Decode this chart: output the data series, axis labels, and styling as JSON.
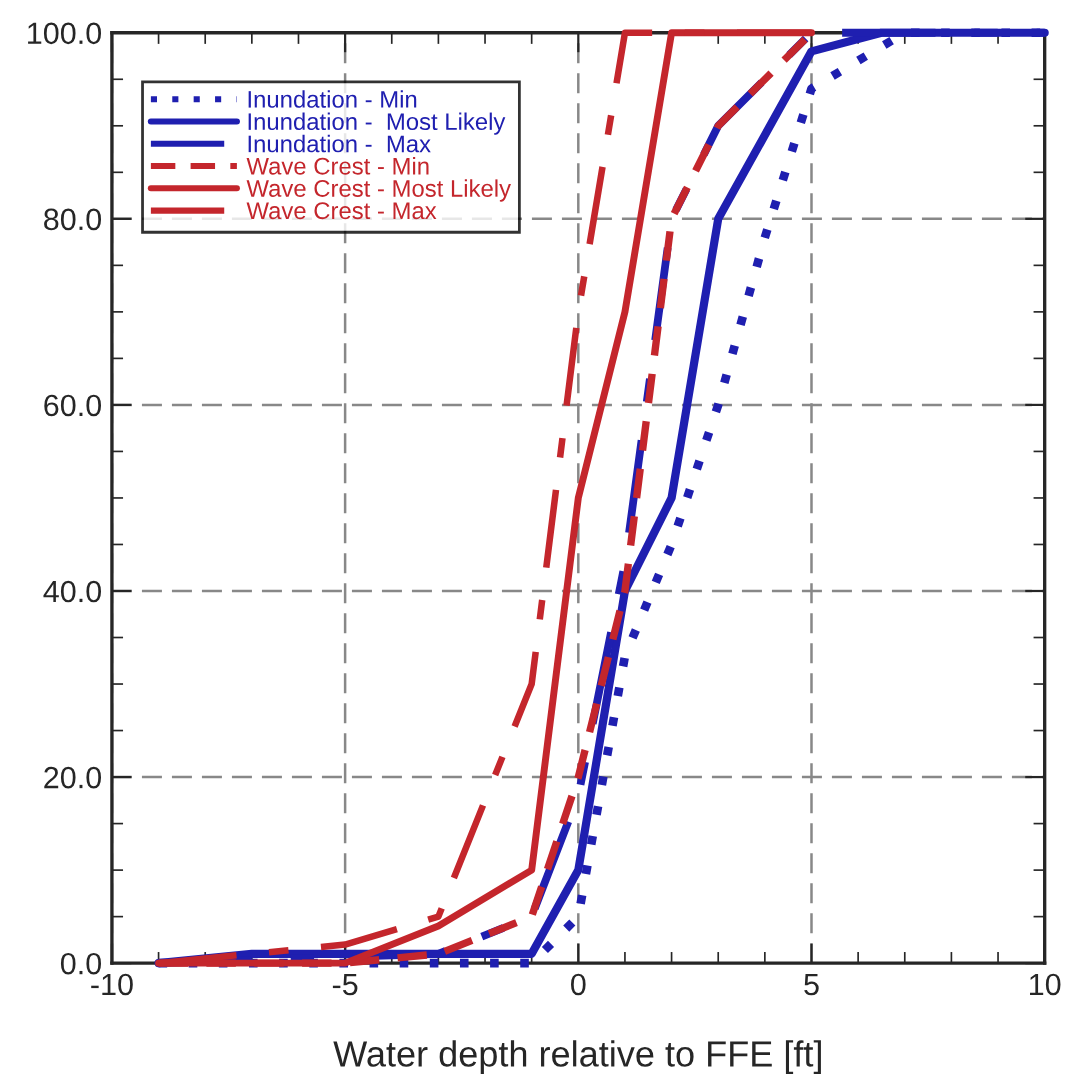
{
  "chart_data": {
    "type": "line",
    "xlabel": "Water depth relative to FFE [ft]",
    "xlim": [
      -10,
      10
    ],
    "xticks": [
      -10,
      -5,
      0,
      5,
      10
    ],
    "ylim": [
      0,
      100
    ],
    "yticks": [
      {
        "value": 0,
        "label": "0.0"
      },
      {
        "value": 20,
        "label": "20.0"
      },
      {
        "value": 40,
        "label": "40.0"
      },
      {
        "value": 60,
        "label": "60.0"
      },
      {
        "value": 80,
        "label": "80.0"
      },
      {
        "value": 100,
        "label": "100.0"
      }
    ],
    "grid": true,
    "legend": "top left",
    "marker": "none",
    "series": [
      {
        "name": "Inundation - Min",
        "color": "#1f1fb0",
        "line_style": "dotted",
        "x": [
          -9,
          -1,
          0,
          1,
          2,
          3,
          4,
          5,
          7,
          10
        ],
        "values": [
          0,
          0,
          5,
          33,
          45,
          60,
          78,
          94,
          100,
          100
        ]
      },
      {
        "name": "Inundation -  Most Likely",
        "color": "#1f1fb0",
        "line_style": "solid",
        "x": [
          -9,
          -7,
          -1,
          0,
          1,
          2,
          3,
          5,
          6.5,
          10
        ],
        "values": [
          0,
          1,
          1,
          10,
          40,
          50,
          80,
          98,
          100,
          100
        ]
      },
      {
        "name": "Inundation -  Max",
        "color": "#1f1fb0",
        "line_style": "dashdot",
        "x": [
          -9,
          -3,
          -1,
          0,
          1,
          2,
          3,
          5,
          10
        ],
        "values": [
          0,
          1,
          5,
          18,
          43,
          80,
          90,
          100,
          100
        ]
      },
      {
        "name": "Wave Crest - Min",
        "color": "#c4262c",
        "line_style": "dashed",
        "x": [
          -9,
          -5,
          -3,
          -1,
          0,
          1,
          2,
          3,
          5
        ],
        "values": [
          0,
          0,
          1,
          5,
          20,
          40,
          80,
          90,
          100
        ]
      },
      {
        "name": "Wave Crest - Most Likely",
        "color": "#c4262c",
        "line_style": "solid",
        "x": [
          -9,
          -5,
          -3,
          -1,
          0,
          1,
          2,
          5
        ],
        "values": [
          0,
          0,
          4,
          10,
          50,
          70,
          100,
          100
        ]
      },
      {
        "name": "Wave Crest - Max",
        "color": "#c4262c",
        "line_style": "dashdot",
        "x": [
          -9,
          -5,
          -3,
          -1,
          0,
          1,
          5
        ],
        "values": [
          0,
          2,
          5,
          30,
          70,
          100,
          100
        ]
      }
    ]
  }
}
